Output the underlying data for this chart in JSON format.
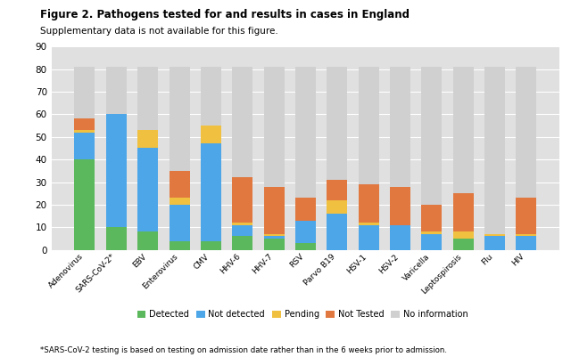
{
  "title": "Figure 2. Pathogens tested for and results in cases in England",
  "subtitle": "Supplementary data is not available for this figure.",
  "footnote": "*SARS-CoV-2 testing is based on testing on admission date rather than in the 6 weeks prior to admission.",
  "categories": [
    "Adenovirus",
    "SARS-CoV-2*",
    "EBV",
    "Enterovirus",
    "CMV",
    "HHV-6",
    "HHV-7",
    "RSV",
    "Parvo B19",
    "HSV-1",
    "HSV-2",
    "Varicella",
    "Leptospirosis",
    "Flu",
    "HIV"
  ],
  "detected": [
    40,
    10,
    8,
    4,
    4,
    6,
    5,
    3,
    0,
    0,
    0,
    0,
    5,
    0,
    0
  ],
  "not_detected": [
    12,
    50,
    37,
    16,
    43,
    5,
    1,
    10,
    16,
    11,
    11,
    7,
    0,
    6,
    6
  ],
  "pending": [
    1,
    0,
    8,
    3,
    8,
    1,
    1,
    0,
    6,
    1,
    0,
    1,
    3,
    1,
    1
  ],
  "not_tested": [
    5,
    0,
    0,
    12,
    0,
    20,
    21,
    10,
    9,
    17,
    17,
    12,
    17,
    0,
    16
  ],
  "no_information": [
    23,
    21,
    28,
    46,
    26,
    49,
    53,
    58,
    50,
    52,
    53,
    61,
    56,
    74,
    58
  ],
  "colors": {
    "detected": "#5cb85c",
    "not_detected": "#4da6e8",
    "pending": "#f0c040",
    "not_tested": "#e07840",
    "no_information": "#d0d0d0"
  },
  "ylim": [
    0,
    90
  ],
  "yticks": [
    0,
    10,
    20,
    30,
    40,
    50,
    60,
    70,
    80,
    90
  ],
  "background_color": "#FFFFFF",
  "plot_bg_color": "#E0E0E0"
}
